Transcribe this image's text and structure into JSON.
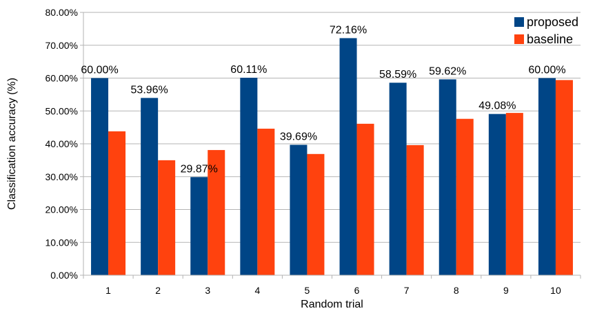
{
  "chart_data": {
    "type": "bar",
    "xlabel": "Random trial",
    "ylabel": "Classification accuracy (%)",
    "ylim": [
      0,
      80
    ],
    "yticks": [
      "0.00%",
      "10.00%",
      "20.00%",
      "30.00%",
      "40.00%",
      "50.00%",
      "60.00%",
      "70.00%",
      "80.00%"
    ],
    "categories": [
      "1",
      "2",
      "3",
      "4",
      "5",
      "6",
      "7",
      "8",
      "9",
      "10"
    ],
    "grid": "horizontal",
    "legend_position": "top-right",
    "series": [
      {
        "name": "proposed",
        "color": "#004586",
        "values": [
          60.0,
          53.96,
          29.87,
          60.11,
          39.69,
          72.16,
          58.59,
          59.62,
          49.08,
          60.0
        ],
        "labels": [
          "60.00%",
          "53.96%",
          "29.87%",
          "60.11%",
          "39.69%",
          "72.16%",
          "58.59%",
          "59.62%",
          "49.08%",
          "60.00%"
        ]
      },
      {
        "name": "baseline",
        "color": "#ff420e",
        "values": [
          43.8,
          35.0,
          38.1,
          44.6,
          36.9,
          46.1,
          39.6,
          47.6,
          49.4,
          59.4
        ]
      }
    ]
  }
}
